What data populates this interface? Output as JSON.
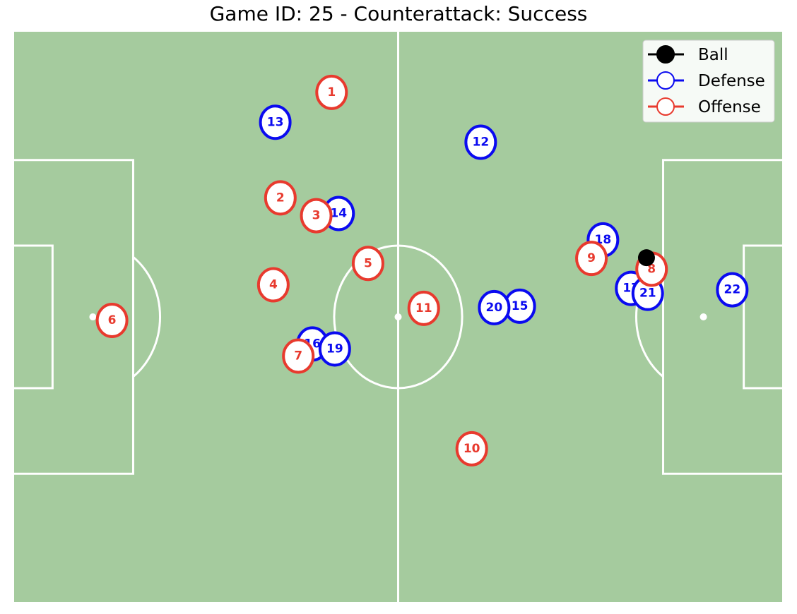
{
  "title": "Game ID: 25 - Counterattack: Success",
  "colors": {
    "pitch": "#a5cb9e",
    "lines": "#ffffff",
    "defense": "#0a0af0",
    "offense": "#e83a2e",
    "ball": "#000000"
  },
  "legend": {
    "placement": "top-right",
    "items": [
      {
        "label": "Ball",
        "marker": "filled-circle"
      },
      {
        "label": "Defense",
        "marker": "hollow-circle"
      },
      {
        "label": "Offense",
        "marker": "hollow-circle"
      }
    ]
  },
  "chart_data": {
    "type": "scatter",
    "title": "Game ID: 25 - Counterattack: Success",
    "xlim": [
      0,
      120
    ],
    "ylim": [
      0,
      80
    ],
    "grid": false,
    "ball": {
      "x": 98.8,
      "y": 48.3
    },
    "series": [
      {
        "name": "Defense",
        "points": [
          {
            "label": "12",
            "x": 72.9,
            "y": 64.5
          },
          {
            "label": "13",
            "x": 40.8,
            "y": 67.3
          },
          {
            "label": "14",
            "x": 50.7,
            "y": 54.5
          },
          {
            "label": "15",
            "x": 79.0,
            "y": 41.5
          },
          {
            "label": "16",
            "x": 46.6,
            "y": 36.2
          },
          {
            "label": "17",
            "x": 96.4,
            "y": 44.0
          },
          {
            "label": "18",
            "x": 92.0,
            "y": 50.8
          },
          {
            "label": "19",
            "x": 50.1,
            "y": 35.5
          },
          {
            "label": "20",
            "x": 75.0,
            "y": 41.3
          },
          {
            "label": "21",
            "x": 99.0,
            "y": 43.3
          },
          {
            "label": "22",
            "x": 112.2,
            "y": 43.8
          }
        ]
      },
      {
        "name": "Offense",
        "points": [
          {
            "label": "1",
            "x": 49.6,
            "y": 71.5
          },
          {
            "label": "2",
            "x": 41.6,
            "y": 56.7
          },
          {
            "label": "3",
            "x": 47.2,
            "y": 54.2
          },
          {
            "label": "4",
            "x": 40.5,
            "y": 44.5
          },
          {
            "label": "5",
            "x": 55.3,
            "y": 47.5
          },
          {
            "label": "6",
            "x": 15.3,
            "y": 39.5
          },
          {
            "label": "7",
            "x": 44.4,
            "y": 34.5
          },
          {
            "label": "8",
            "x": 99.6,
            "y": 46.7
          },
          {
            "label": "9",
            "x": 90.2,
            "y": 48.2
          },
          {
            "label": "10",
            "x": 71.5,
            "y": 21.5
          },
          {
            "label": "11",
            "x": 64.0,
            "y": 41.2
          }
        ]
      }
    ]
  }
}
